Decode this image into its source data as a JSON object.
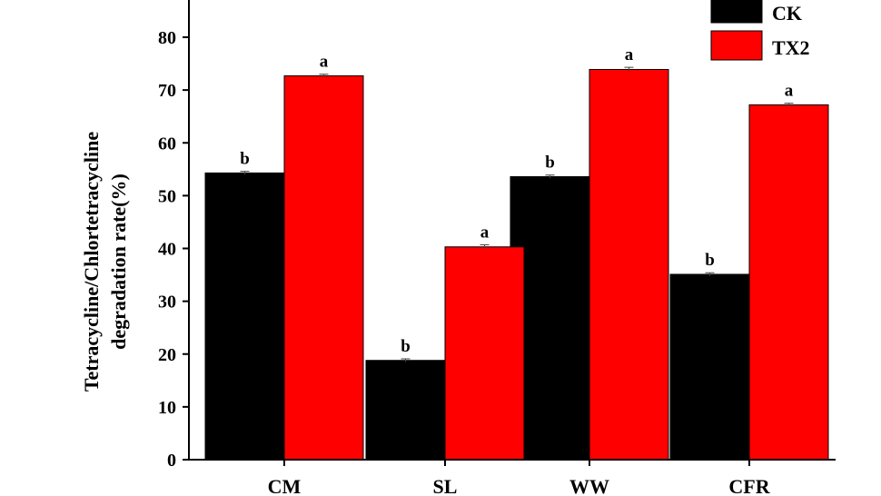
{
  "chart_data": {
    "type": "bar",
    "title": "",
    "xlabel": "",
    "ylabel_lines": [
      "Tetracycline/Chlortetracycline",
      "degradation rate(%)"
    ],
    "categories": [
      "CM",
      "SL",
      "WW",
      "CFR"
    ],
    "ylim": [
      0,
      85
    ],
    "yticks": [
      0,
      10,
      20,
      30,
      40,
      50,
      60,
      70,
      80
    ],
    "grid": false,
    "legend_position": "top-right",
    "series": [
      {
        "name": "CK",
        "color": "#000000",
        "values": [
          54.3,
          18.8,
          53.6,
          35.1
        ],
        "errors": [
          0.3,
          0.3,
          0.3,
          0.3
        ],
        "labels": [
          "b",
          "b",
          "b",
          "b"
        ]
      },
      {
        "name": "TX2",
        "color": "#ff0000",
        "values": [
          72.7,
          40.3,
          73.9,
          67.2
        ],
        "errors": [
          0.3,
          0.4,
          0.4,
          0.3
        ],
        "labels": [
          "a",
          "a",
          "a",
          "a"
        ]
      }
    ]
  }
}
